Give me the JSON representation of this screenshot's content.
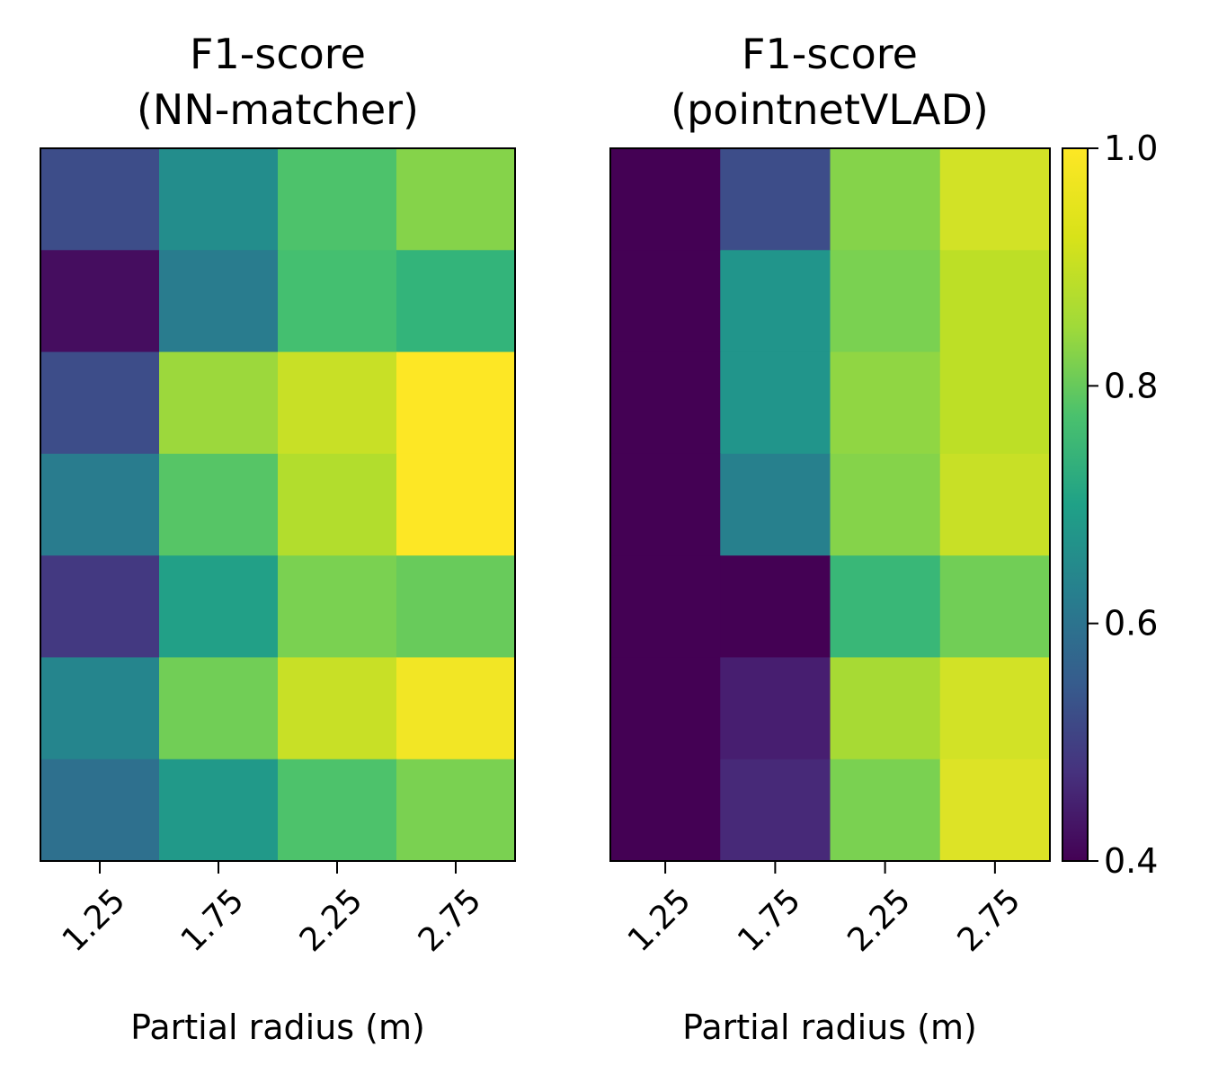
{
  "chart_data": [
    {
      "type": "heatmap",
      "title": [
        "F1-score",
        "(NN-matcher)"
      ],
      "xlabel": "Partial radius (m)",
      "ylabel": "",
      "xticklabels": [
        "1.25",
        "1.75",
        "2.25",
        "2.75"
      ],
      "yticklabels": [],
      "values": [
        [
          0.54,
          0.69,
          0.83,
          0.89
        ],
        [
          0.42,
          0.65,
          0.82,
          0.79
        ],
        [
          0.54,
          0.91,
          0.95,
          1.0
        ],
        [
          0.65,
          0.84,
          0.93,
          1.0
        ],
        [
          0.5,
          0.74,
          0.88,
          0.86
        ],
        [
          0.67,
          0.87,
          0.95,
          0.99
        ],
        [
          0.62,
          0.72,
          0.83,
          0.88
        ]
      ]
    },
    {
      "type": "heatmap",
      "title": [
        "F1-score",
        "(pointnetVLAD)"
      ],
      "xlabel": "Partial radius (m)",
      "ylabel": "",
      "xticklabels": [
        "1.25",
        "1.75",
        "2.25",
        "2.75"
      ],
      "yticklabels": [],
      "values": [
        [
          0.4,
          0.54,
          0.89,
          0.96
        ],
        [
          0.4,
          0.71,
          0.88,
          0.94
        ],
        [
          0.4,
          0.71,
          0.9,
          0.94
        ],
        [
          0.4,
          0.66,
          0.89,
          0.95
        ],
        [
          0.4,
          0.4,
          0.8,
          0.87
        ],
        [
          0.4,
          0.45,
          0.92,
          0.96
        ],
        [
          0.4,
          0.47,
          0.88,
          0.97
        ]
      ]
    }
  ],
  "colorbar": {
    "colormap": "viridis",
    "range": [
      0.4,
      1.0
    ],
    "ticks": [
      0.4,
      0.6,
      0.8,
      1.0
    ],
    "ticklabels": [
      "0.4",
      "0.6",
      "0.8",
      "1.0"
    ]
  }
}
